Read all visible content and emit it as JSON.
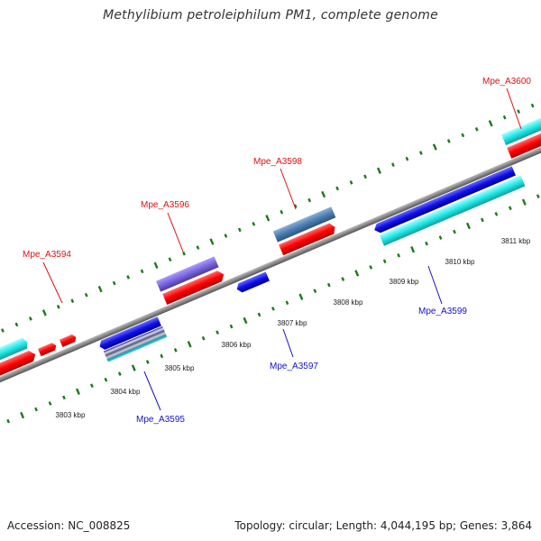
{
  "title": "Methylibium petroleiphilum PM1, complete genome",
  "footer": {
    "accession": "Accession: NC_008825",
    "summary": "Topology: circular; Length: 4,044,195 bp; Genes: 3,864"
  },
  "colors": {
    "backbone": "#888888",
    "tick": "#1a7a1a",
    "label_top": "#dd1111",
    "label_bottom": "#1111cc",
    "scale_text": "#222222"
  },
  "scale_labels": [
    {
      "text": "3803 kbp",
      "kbp": 3803
    },
    {
      "text": "3804 kbp",
      "kbp": 3804
    },
    {
      "text": "3805 kbp",
      "kbp": 3805
    },
    {
      "text": "3806 kbp",
      "kbp": 3806
    },
    {
      "text": "3807 kbp",
      "kbp": 3807
    },
    {
      "text": "3808 kbp",
      "kbp": 3808
    },
    {
      "text": "3809 kbp",
      "kbp": 3809
    },
    {
      "text": "3810 kbp",
      "kbp": 3810
    },
    {
      "text": "3811 kbp",
      "kbp": 3811
    }
  ],
  "gene_labels": [
    {
      "text": "Mpe_A3594",
      "strand": "top"
    },
    {
      "text": "Mpe_A3595",
      "strand": "bottom"
    },
    {
      "text": "Mpe_A3596",
      "strand": "top"
    },
    {
      "text": "Mpe_A3597",
      "strand": "bottom"
    },
    {
      "text": "Mpe_A3598",
      "strand": "top"
    },
    {
      "text": "Mpe_A3599",
      "strand": "bottom"
    },
    {
      "text": "Mpe_A3600",
      "strand": "top"
    }
  ]
}
